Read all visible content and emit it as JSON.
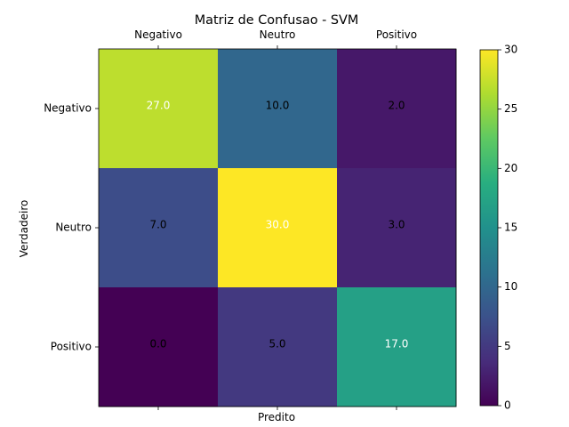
{
  "chart_data": {
    "type": "heatmap",
    "title": "Matriz de Confusao - SVM",
    "xlabel": "Predito",
    "ylabel": "Verdadeiro",
    "x_categories": [
      "Negativo",
      "Neutro",
      "Positivo"
    ],
    "y_categories": [
      "Negativo",
      "Neutro",
      "Positivo"
    ],
    "values": [
      [
        27,
        10,
        2
      ],
      [
        7,
        30,
        3
      ],
      [
        0,
        5,
        17
      ]
    ],
    "value_labels": [
      [
        "27.0",
        "10.0",
        "2.0"
      ],
      [
        "7.0",
        "30.0",
        "3.0"
      ],
      [
        "0.0",
        "5.0",
        "17.0"
      ]
    ],
    "colormap": "viridis",
    "vmin": 0,
    "vmax": 30,
    "colorbar_ticks": [
      0,
      5,
      10,
      15,
      20,
      25,
      30
    ],
    "label_colors": {
      "dark_cell": "#ffffff",
      "light_cell": "#000000"
    },
    "grid": false
  }
}
